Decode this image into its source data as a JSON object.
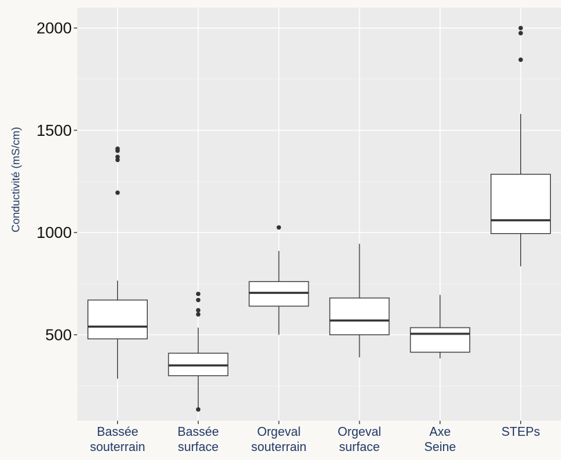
{
  "chart_data": {
    "type": "boxplot",
    "ylabel": "Conductivité (mS/cm)",
    "xlabel": "",
    "ylim": [
      80,
      2100
    ],
    "yticks": [
      500,
      1000,
      1500,
      2000
    ],
    "grid": true,
    "categories": [
      {
        "lines": [
          "Bassée",
          "souterrain"
        ]
      },
      {
        "lines": [
          "Bassée",
          "surface"
        ]
      },
      {
        "lines": [
          "Orgeval",
          "souterrain"
        ]
      },
      {
        "lines": [
          "Orgeval",
          "surface"
        ]
      },
      {
        "lines": [
          "Axe",
          "Seine"
        ]
      },
      {
        "lines": [
          "STEPs"
        ]
      }
    ],
    "boxes": [
      {
        "whisker_low": 285,
        "q1": 480,
        "median": 540,
        "q3": 670,
        "whisker_high": 765,
        "outliers": [
          1195,
          1355,
          1370,
          1400,
          1410
        ]
      },
      {
        "whisker_low": 140,
        "q1": 300,
        "median": 350,
        "q3": 410,
        "whisker_high": 535,
        "outliers": [
          135,
          600,
          620,
          670,
          700
        ]
      },
      {
        "whisker_low": 500,
        "q1": 640,
        "median": 705,
        "q3": 760,
        "whisker_high": 910,
        "outliers": [
          1025
        ]
      },
      {
        "whisker_low": 390,
        "q1": 500,
        "median": 570,
        "q3": 680,
        "whisker_high": 945,
        "outliers": []
      },
      {
        "whisker_low": 385,
        "q1": 415,
        "median": 505,
        "q3": 535,
        "whisker_high": 695,
        "outliers": []
      },
      {
        "whisker_low": 835,
        "q1": 995,
        "median": 1060,
        "q3": 1285,
        "whisker_high": 1580,
        "outliers": [
          1845,
          1975,
          2000
        ]
      }
    ]
  }
}
